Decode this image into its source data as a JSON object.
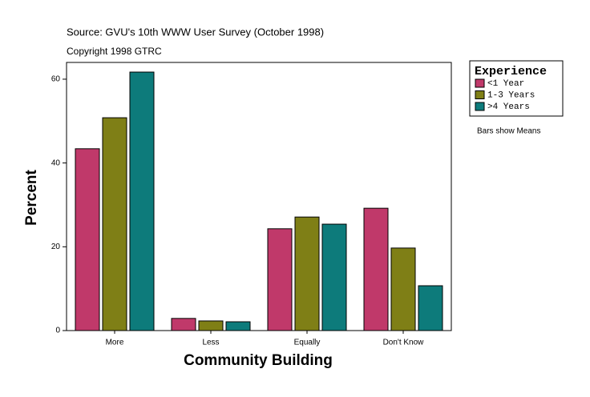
{
  "chart_data": {
    "type": "bar",
    "source": "Source: GVU's 10th WWW User Survey (October 1998)",
    "copyright": "Copyright 1998 GTRC",
    "x_label": "Community Building",
    "y_label": "Percent",
    "legend_title": "Experience",
    "note": "Bars show Means",
    "categories": [
      "More",
      "Less",
      "Equally",
      "Don't Know"
    ],
    "series": [
      {
        "name": "<1 Year",
        "color": "#c0396a",
        "values": [
          43.4,
          2.9,
          24.3,
          29.2
        ]
      },
      {
        "name": "1-3 Years",
        "color": "#7f7f16",
        "values": [
          50.8,
          2.3,
          27.1,
          19.7
        ]
      },
      {
        "name": ">4 Years",
        "color": "#0d7b7b",
        "values": [
          61.7,
          2.1,
          25.4,
          10.7
        ]
      }
    ],
    "ylim": [
      0,
      64
    ],
    "yticks": [
      0,
      20,
      40,
      60
    ],
    "grid": false,
    "legend": "right"
  }
}
